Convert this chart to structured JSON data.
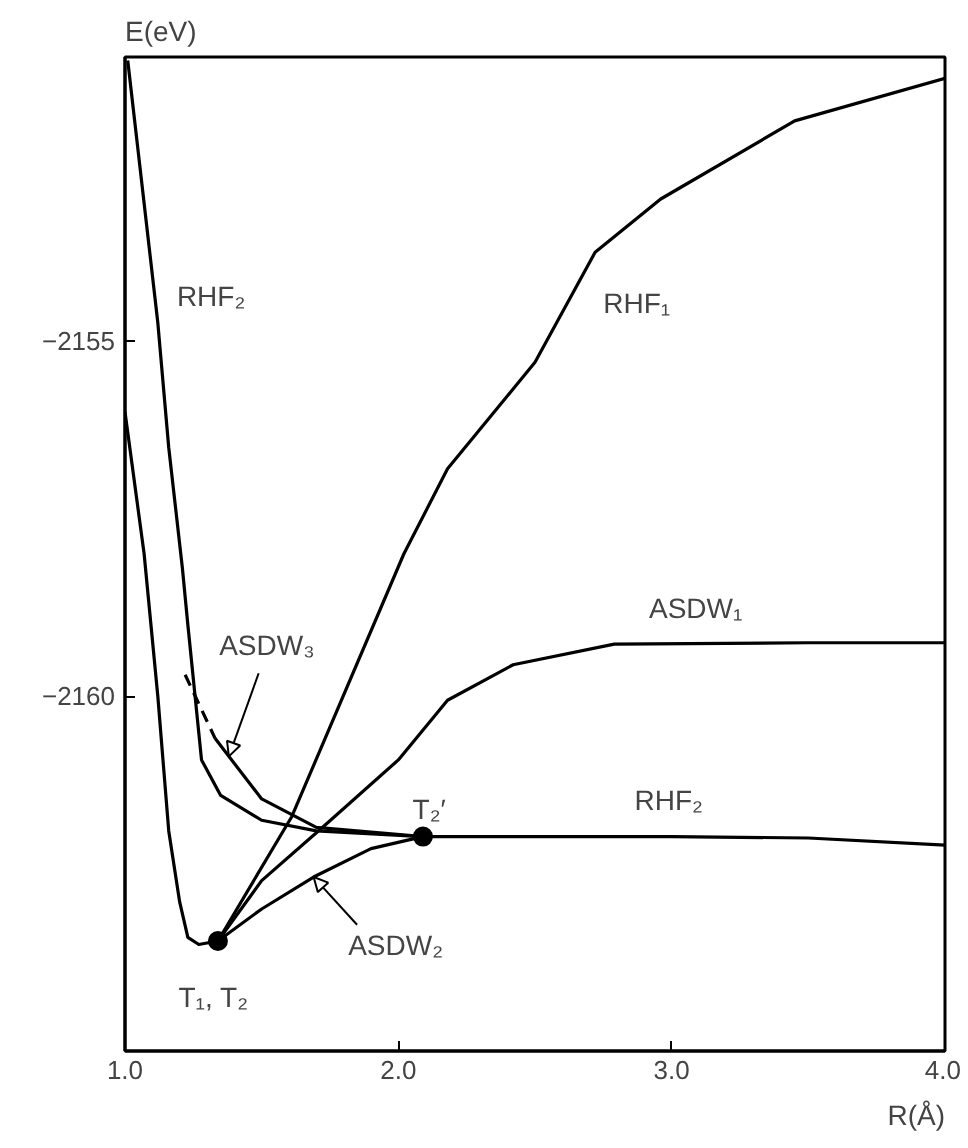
{
  "chart_data": {
    "type": "line",
    "xlabel": "R(Å)",
    "ylabel": "E(eV)",
    "xlim": [
      1.0,
      4.0
    ],
    "ylim": [
      -2165,
      -2151
    ],
    "xticks": [
      {
        "value": 1.0,
        "label": "1.0"
      },
      {
        "value": 2.0,
        "label": "2.0"
      },
      {
        "value": 3.0,
        "label": "3.0"
      },
      {
        "value": 4.0,
        "label": "4.0"
      }
    ],
    "yticks": [
      -2160,
      -2155
    ],
    "grid": false,
    "series": [
      {
        "color": "#000000",
        "x": [
          1.0,
          1.07,
          1.12,
          1.16,
          1.2,
          1.23,
          1.27,
          1.34,
          1.61,
          2.02,
          2.18,
          2.5,
          2.72,
          2.96,
          3.45,
          4.0
        ],
        "values": [
          -2156.0,
          -2158.0,
          -2160.0,
          -2161.9,
          -2162.9,
          -2163.4,
          -2163.5,
          -2163.45,
          -2161.7,
          -2158.0,
          -2156.8,
          -2155.3,
          -2153.75,
          -2153.0,
          -2151.9,
          -2151.3
        ]
      },
      {
        "color": "#000000",
        "x": [
          1.34,
          1.5,
          1.72,
          2.0,
          2.18,
          2.42,
          2.79,
          3.5,
          4.0
        ],
        "values": [
          -2163.45,
          -2162.6,
          -2161.86,
          -2160.9,
          -2160.06,
          -2159.56,
          -2159.27,
          -2159.25,
          -2159.25
        ]
      },
      {
        "color": "#000000",
        "x": [
          1.34,
          1.5,
          1.69,
          1.9,
          2.09
        ],
        "values": [
          -2163.45,
          -2163.0,
          -2162.55,
          -2162.15,
          -2161.98
        ]
      },
      {
        "color": "#000000",
        "x": [
          1.01,
          1.12,
          1.16,
          1.21,
          1.23,
          1.28,
          1.35,
          1.5,
          1.7,
          2.09,
          2.5,
          3.0,
          3.5,
          4.0
        ],
        "values": [
          -2151.05,
          -2154.74,
          -2156.5,
          -2158.2,
          -2159.0,
          -2160.9,
          -2161.4,
          -2161.75,
          -2161.9,
          -2161.98,
          -2161.98,
          -2161.98,
          -2162.0,
          -2162.1
        ]
      },
      {
        "color": "#000000",
        "line_style": "dashed",
        "x": [
          1.22,
          1.33
        ],
        "values": [
          -2159.7,
          -2160.6
        ]
      },
      {
        "color": "#000000",
        "x": [
          1.33,
          1.5,
          1.7,
          2.09
        ],
        "values": [
          -2160.6,
          -2161.45,
          -2161.85,
          -2161.98
        ]
      },
      {
        "type": "scatter",
        "marker": "circle",
        "color": "#000000",
        "x": [
          1.34,
          2.09
        ],
        "values": [
          -2163.45,
          -2161.98
        ]
      }
    ],
    "annotations": [
      "RHF₂",
      "RHF₁",
      "ASDW₁",
      "RHF₂",
      {
        "text": "ASDW₃",
        "x": 1.38,
        "y": -2160.85
      },
      {
        "text": "ASDW₂",
        "x": 1.69,
        "y": -2162.55
      },
      "T₂′",
      "T₁, T₂"
    ]
  }
}
